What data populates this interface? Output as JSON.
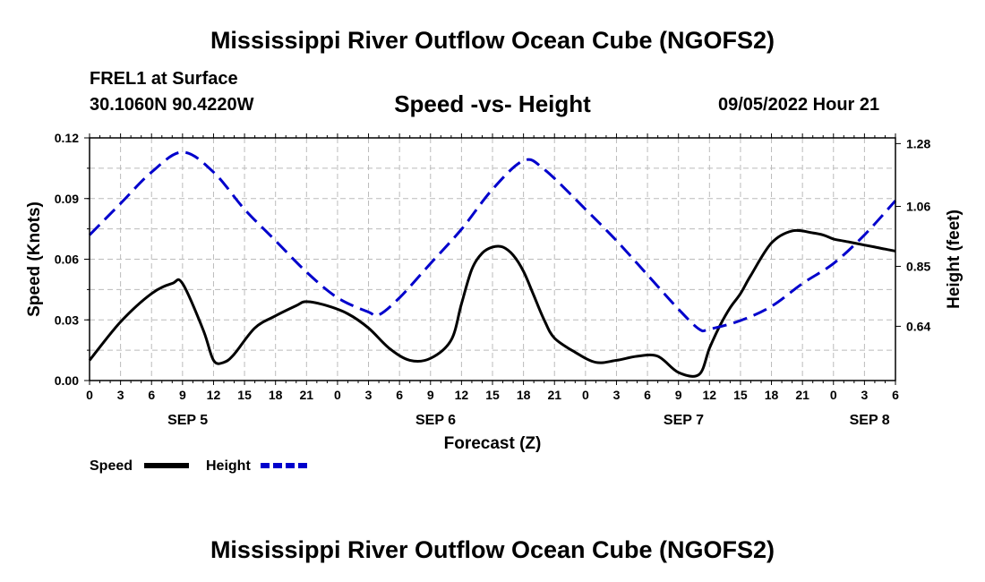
{
  "header": {
    "title": "Mississippi River Outflow Ocean Cube (NGOFS2)",
    "station": "FREL1 at Surface",
    "coords": "30.1060N  90.4220W",
    "subtitle": "Speed -vs- Height",
    "datetime": "09/05/2022 Hour 21"
  },
  "footer": {
    "title": "Mississippi River Outflow Ocean Cube (NGOFS2)"
  },
  "colors": {
    "speed": "#000000",
    "height": "#0000cc",
    "grid": "#bbbbbb"
  },
  "chart_data": {
    "type": "line",
    "title": "Speed -vs- Height",
    "xlabel": "Forecast (Z)",
    "ylabel_left": "Speed (Knots)",
    "ylabel_right": "Height (feet)",
    "x_range_hours": [
      0,
      78
    ],
    "x_tick_step_hours": 3,
    "x_tick_labels": [
      "0",
      "3",
      "6",
      "9",
      "12",
      "15",
      "18",
      "21",
      "0",
      "3",
      "6",
      "9",
      "12",
      "15",
      "18",
      "21",
      "0",
      "3",
      "6",
      "9",
      "12",
      "15",
      "18",
      "21",
      "0",
      "3",
      "6"
    ],
    "day_labels": [
      {
        "label": "SEP 5",
        "hour": 9.5
      },
      {
        "label": "SEP 6",
        "hour": 33.5
      },
      {
        "label": "SEP 7",
        "hour": 57.5
      },
      {
        "label": "SEP 8",
        "hour": 75.5
      }
    ],
    "ylim_left": [
      0,
      0.12
    ],
    "y_ticks_left": [
      "0.00",
      "0.03",
      "0.06",
      "0.09",
      "0.12"
    ],
    "ylim_right": [
      0.45,
      1.3
    ],
    "y_ticks_right": [
      "0.64",
      "0.85",
      "1.06",
      "1.28"
    ],
    "grid": true,
    "series": [
      {
        "name": "Speed",
        "axis": "left",
        "style": "solid",
        "x": [
          0,
          3,
          6,
          8,
          9,
          11,
          12,
          13,
          14,
          16,
          18,
          20,
          21,
          23,
          25,
          27,
          29,
          31,
          33,
          35,
          36,
          37,
          38,
          39,
          40,
          41,
          42,
          43,
          44,
          45,
          47,
          49,
          51,
          53,
          55,
          57,
          59,
          60,
          61,
          62,
          63,
          64,
          66,
          68,
          70,
          71,
          72,
          73,
          74,
          76,
          77,
          78
        ],
        "values": [
          0.01,
          0.029,
          0.043,
          0.048,
          0.048,
          0.025,
          0.01,
          0.009,
          0.013,
          0.026,
          0.032,
          0.037,
          0.039,
          0.037,
          0.033,
          0.026,
          0.016,
          0.01,
          0.011,
          0.02,
          0.038,
          0.055,
          0.063,
          0.066,
          0.066,
          0.062,
          0.054,
          0.042,
          0.03,
          0.021,
          0.014,
          0.009,
          0.01,
          0.012,
          0.012,
          0.004,
          0.003,
          0.016,
          0.027,
          0.036,
          0.043,
          0.052,
          0.068,
          0.074,
          0.073,
          0.072,
          0.07,
          0.069,
          0.068,
          0.066,
          0.065,
          0.064
        ]
      },
      {
        "name": "Height",
        "axis": "right",
        "style": "dashed",
        "x": [
          0,
          3,
          6,
          9,
          12,
          15,
          18,
          21,
          24,
          27,
          28,
          30,
          33,
          36,
          39,
          42,
          44,
          48,
          51,
          54,
          57,
          59,
          60,
          63,
          66,
          69,
          72,
          75,
          78
        ],
        "values": [
          0.96,
          1.07,
          1.18,
          1.25,
          1.18,
          1.05,
          0.94,
          0.83,
          0.74,
          0.69,
          0.68,
          0.74,
          0.86,
          0.98,
          1.12,
          1.22,
          1.19,
          1.05,
          0.94,
          0.82,
          0.7,
          0.63,
          0.63,
          0.66,
          0.71,
          0.79,
          0.86,
          0.96,
          1.08
        ]
      }
    ],
    "legend": [
      {
        "label": "Speed",
        "style": "solid"
      },
      {
        "label": "Height",
        "style": "dashed"
      }
    ]
  }
}
